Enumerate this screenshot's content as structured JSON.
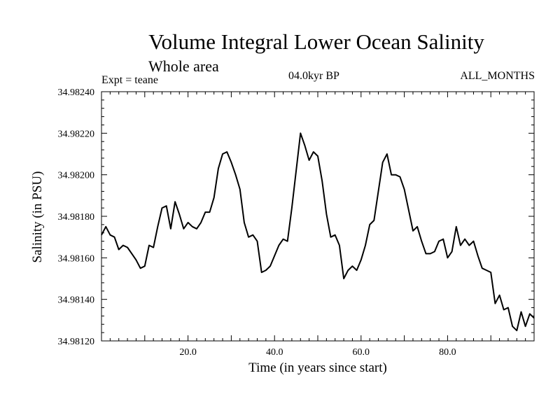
{
  "chart_data": {
    "type": "line",
    "title": "Volume Integral Lower Ocean Salinity",
    "subtitle": "Whole area",
    "experiment": "Expt = teane",
    "period": "04.0kyr BP",
    "months": "ALL_MONTHS",
    "xlabel": "Time (in years since start)",
    "ylabel": "Salinity (in PSU)",
    "xlim": [
      0,
      100
    ],
    "ylim": [
      34.9812,
      34.9824
    ],
    "x_ticks": [
      20,
      40,
      60,
      80
    ],
    "x_tick_labels": [
      "20.0",
      "40.0",
      "60.0",
      "80.0"
    ],
    "y_ticks": [
      34.9812,
      34.9814,
      34.9816,
      34.9818,
      34.982,
      34.9822,
      34.9824
    ],
    "y_tick_labels": [
      "34.98120",
      "34.98140",
      "34.98160",
      "34.98180",
      "34.98200",
      "34.98220",
      "34.98240"
    ],
    "grid": false,
    "series": [
      {
        "name": "salinity",
        "x": [
          0,
          1,
          2,
          3,
          4,
          5,
          6,
          7,
          8,
          9,
          10,
          11,
          12,
          13,
          14,
          15,
          16,
          17,
          18,
          19,
          20,
          21,
          22,
          23,
          24,
          25,
          26,
          27,
          28,
          29,
          30,
          31,
          32,
          33,
          34,
          35,
          36,
          37,
          38,
          39,
          40,
          41,
          42,
          43,
          44,
          45,
          46,
          47,
          48,
          49,
          50,
          51,
          52,
          53,
          54,
          55,
          56,
          57,
          58,
          59,
          60,
          61,
          62,
          63,
          64,
          65,
          66,
          67,
          68,
          69,
          70,
          71,
          72,
          73,
          74,
          75,
          76,
          77,
          78,
          79,
          80,
          81,
          82,
          83,
          84,
          85,
          86,
          87,
          88,
          89,
          90,
          91,
          92,
          93,
          94,
          95,
          96,
          97,
          98,
          99,
          100
        ],
        "values": [
          34.98171,
          34.98175,
          34.98171,
          34.9817,
          34.98164,
          34.98166,
          34.98165,
          34.98162,
          34.98159,
          34.98155,
          34.98156,
          34.98166,
          34.98165,
          34.98175,
          34.98184,
          34.98185,
          34.98174,
          34.98187,
          34.98181,
          34.98174,
          34.98177,
          34.98175,
          34.98174,
          34.98177,
          34.98182,
          34.98182,
          34.98189,
          34.98203,
          34.9821,
          34.98211,
          34.98206,
          34.982,
          34.98193,
          34.98177,
          34.9817,
          34.98171,
          34.98168,
          34.98153,
          34.98154,
          34.98156,
          34.98161,
          34.98166,
          34.98169,
          34.98168,
          34.98184,
          34.98202,
          34.9822,
          34.98214,
          34.98207,
          34.98211,
          34.98209,
          34.98197,
          34.98181,
          34.9817,
          34.98171,
          34.98166,
          34.9815,
          34.98154,
          34.98156,
          34.98154,
          34.98159,
          34.98166,
          34.98176,
          34.98178,
          34.98192,
          34.98206,
          34.9821,
          34.982,
          34.982,
          34.98199,
          34.98193,
          34.98183,
          34.98173,
          34.98175,
          34.98168,
          34.98162,
          34.98162,
          34.98163,
          34.98168,
          34.98169,
          34.9816,
          34.98163,
          34.98175,
          34.98166,
          34.98169,
          34.98166,
          34.98168,
          34.98161,
          34.98155,
          34.98154,
          34.98153,
          34.98138,
          34.98142,
          34.98135,
          34.98136,
          34.98127,
          34.98125,
          34.98134,
          34.98127,
          34.98133,
          34.98131
        ]
      }
    ]
  }
}
